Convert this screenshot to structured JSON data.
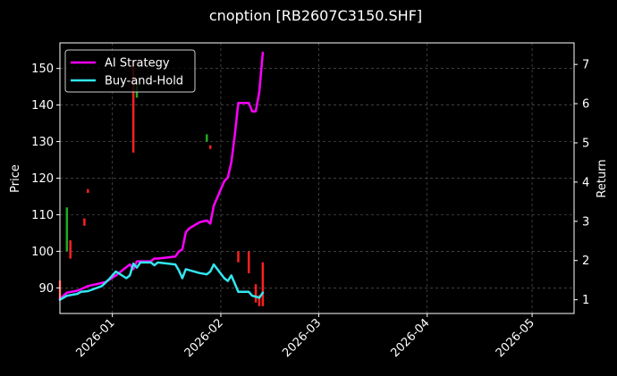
{
  "chart_data": {
    "type": "line",
    "title": "cnoption [RB2607C3150.SHF]",
    "ylabel": "Price",
    "y2label": "Return",
    "grid": true,
    "legend_position": "top-left",
    "legend": [
      {
        "name": "AI Strategy",
        "color": "#ff00ff"
      },
      {
        "name": "Buy-and-Hold",
        "color": "#33e6f0"
      }
    ],
    "xlim": [
      "2025-12-17",
      "2026-05-13"
    ],
    "x_ticks": [
      "2026-01",
      "2026-02",
      "2026-03",
      "2026-04",
      "2026-05"
    ],
    "x_tick_dates": [
      "2026-01-01",
      "2026-02-01",
      "2026-03-01",
      "2026-04-01",
      "2026-05-01"
    ],
    "ylim": [
      83,
      157
    ],
    "y_ticks": [
      90,
      100,
      110,
      120,
      130,
      140,
      150
    ],
    "y2lim": [
      0.65,
      7.55
    ],
    "y2_ticks": [
      1,
      2,
      3,
      4,
      5,
      6,
      7
    ],
    "candles": [
      {
        "date": "2025-12-17",
        "low": 87,
        "high": 92,
        "color": "#ff2020"
      },
      {
        "date": "2025-12-19",
        "low": 100,
        "high": 112,
        "color": "#22aa22"
      },
      {
        "date": "2025-12-20",
        "low": 98,
        "high": 103,
        "color": "#ff2020"
      },
      {
        "date": "2025-12-24",
        "low": 107,
        "high": 109,
        "color": "#ff2020"
      },
      {
        "date": "2025-12-25",
        "low": 116,
        "high": 117,
        "color": "#ff2020"
      },
      {
        "date": "2026-01-07",
        "low": 127,
        "high": 152,
        "color": "#ff2020"
      },
      {
        "date": "2026-01-08",
        "low": 142,
        "high": 146,
        "color": "#22aa22"
      },
      {
        "date": "2026-01-28",
        "low": 130,
        "high": 132,
        "color": "#22aa22"
      },
      {
        "date": "2026-01-29",
        "low": 128,
        "high": 129,
        "color": "#ff2020"
      },
      {
        "date": "2026-02-06",
        "low": 97,
        "high": 100,
        "color": "#ff2020"
      },
      {
        "date": "2026-02-09",
        "low": 94,
        "high": 100,
        "color": "#ff2020"
      },
      {
        "date": "2026-02-11",
        "low": 86,
        "high": 91,
        "color": "#ff2020"
      },
      {
        "date": "2026-02-12",
        "low": 85,
        "high": 88,
        "color": "#ff2020"
      },
      {
        "date": "2026-02-13",
        "low": 85,
        "high": 97,
        "color": "#ff2020"
      }
    ],
    "series": [
      {
        "name": "AI Strategy",
        "color": "#ff00ff",
        "axis": "right",
        "x": [
          "2025-12-17",
          "2025-12-19",
          "2025-12-22",
          "2025-12-25",
          "2025-12-30",
          "2026-01-02",
          "2026-01-06",
          "2026-01-07",
          "2026-01-08",
          "2026-01-12",
          "2026-01-13",
          "2026-01-14",
          "2026-01-19",
          "2026-01-20",
          "2026-01-21",
          "2026-01-22",
          "2026-01-23",
          "2026-01-26",
          "2026-01-28",
          "2026-01-29",
          "2026-01-30",
          "2026-02-02",
          "2026-02-03",
          "2026-02-04",
          "2026-02-05",
          "2026-02-06",
          "2026-02-09",
          "2026-02-10",
          "2026-02-11",
          "2026-02-12",
          "2026-02-13"
        ],
        "values": [
          1.02,
          1.18,
          1.23,
          1.35,
          1.45,
          1.62,
          1.9,
          1.78,
          1.98,
          1.98,
          2.05,
          2.05,
          2.1,
          2.23,
          2.28,
          2.72,
          2.82,
          2.98,
          3.02,
          2.94,
          3.4,
          4.02,
          4.12,
          4.5,
          5.2,
          6.02,
          6.02,
          5.8,
          5.8,
          6.3,
          7.3
        ]
      },
      {
        "name": "Buy-and-Hold",
        "color": "#33e6f0",
        "axis": "right",
        "x": [
          "2025-12-17",
          "2025-12-18",
          "2025-12-19",
          "2025-12-22",
          "2025-12-23",
          "2025-12-25",
          "2025-12-29",
          "2025-12-31",
          "2026-01-02",
          "2026-01-05",
          "2026-01-06",
          "2026-01-07",
          "2026-01-08",
          "2026-01-09",
          "2026-01-12",
          "2026-01-13",
          "2026-01-14",
          "2026-01-19",
          "2026-01-20",
          "2026-01-21",
          "2026-01-22",
          "2026-01-26",
          "2026-01-28",
          "2026-01-29",
          "2026-01-30",
          "2026-02-02",
          "2026-02-03",
          "2026-02-04",
          "2026-02-06",
          "2026-02-09",
          "2026-02-10",
          "2026-02-11",
          "2026-02-12",
          "2026-02-13"
        ],
        "values": [
          1.0,
          1.05,
          1.1,
          1.15,
          1.2,
          1.22,
          1.35,
          1.52,
          1.72,
          1.55,
          1.62,
          1.92,
          1.82,
          1.95,
          1.95,
          1.88,
          1.95,
          1.9,
          1.75,
          1.55,
          1.78,
          1.68,
          1.65,
          1.72,
          1.9,
          1.55,
          1.48,
          1.62,
          1.2,
          1.2,
          1.1,
          1.08,
          1.05,
          1.18
        ]
      }
    ]
  }
}
